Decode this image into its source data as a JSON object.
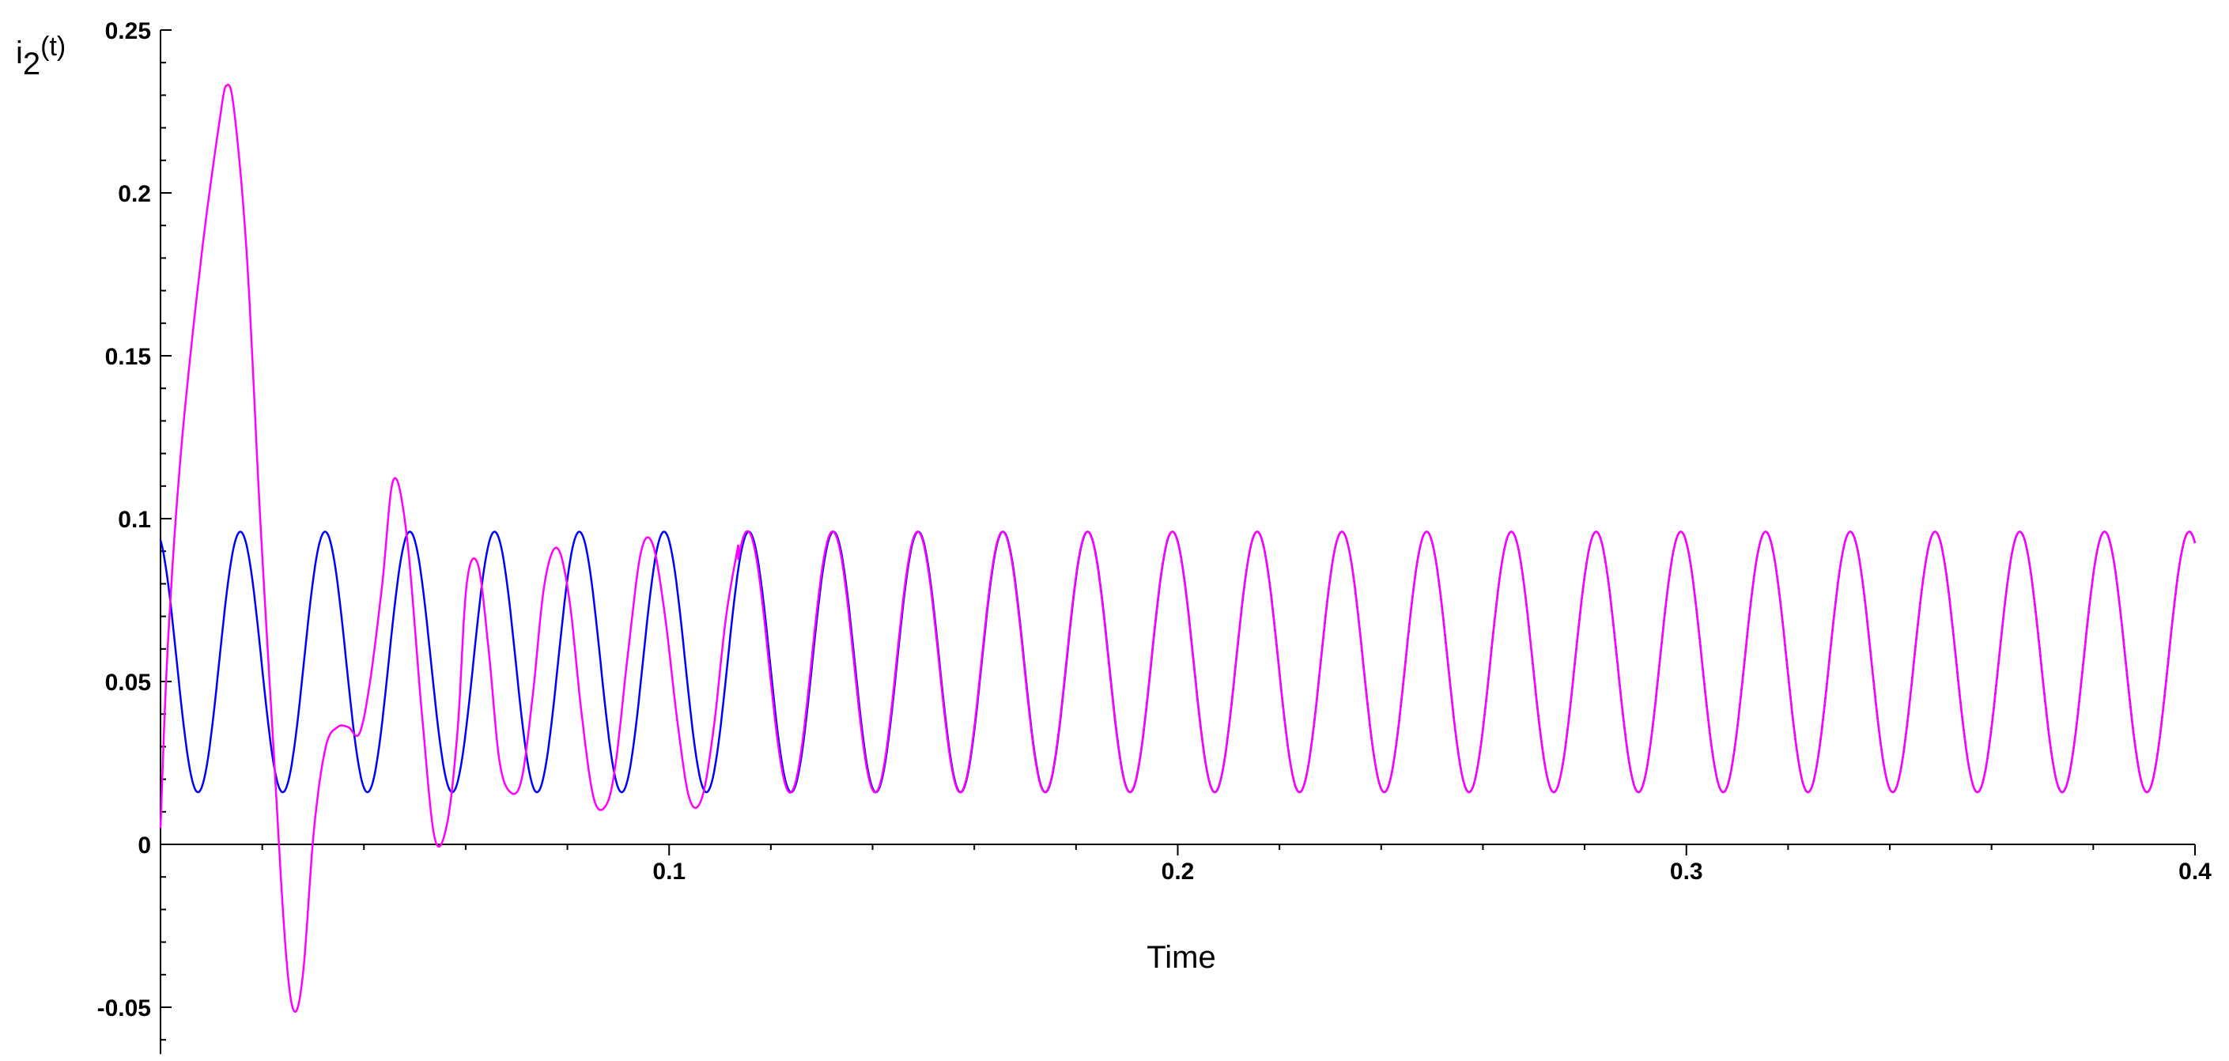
{
  "chart_data": {
    "type": "line",
    "title": "",
    "xlabel": "Time",
    "ylabel": {
      "base": "i",
      "sub": "2",
      "suffix": "(t)"
    },
    "xlim": [
      0,
      0.4
    ],
    "ylim": [
      -0.06,
      0.25
    ],
    "x_ticks": [
      {
        "value": 0.1,
        "label": "0.1"
      },
      {
        "value": 0.2,
        "label": "0.2"
      },
      {
        "value": 0.3,
        "label": "0.3"
      },
      {
        "value": 0.4,
        "label": "0.4"
      }
    ],
    "y_ticks": [
      {
        "value": -0.05,
        "label": "-0.05"
      },
      {
        "value": 0,
        "label": "0"
      },
      {
        "value": 0.05,
        "label": "0.05"
      },
      {
        "value": 0.1,
        "label": "0.1"
      },
      {
        "value": 0.15,
        "label": "0.15"
      },
      {
        "value": 0.2,
        "label": "0.2"
      },
      {
        "value": 0.25,
        "label": "0.25"
      }
    ],
    "grid": false,
    "legend": "none",
    "series": [
      {
        "color": "#0000ff",
        "description_values": "steady-state sinusoid",
        "x": [
          0,
          0.0035,
          0.0074,
          0.0114,
          0.0157,
          0.0204,
          0.0244,
          0.0284,
          0.0324,
          0.0364,
          0.0404,
          0.0444,
          0.0484,
          0.0524,
          0.0564,
          0.0604,
          0.0644,
          0.0684
        ],
        "y": [
          0.086,
          0.04,
          0.016,
          0.04,
          0.096,
          0.04,
          0.016,
          0.056,
          0.096,
          0.056,
          0.016,
          0.056,
          0.096,
          0.056,
          0.016,
          0.056,
          0.096,
          0.056
        ]
      },
      {
        "color": "#ff00ff",
        "x": [
          0,
          0.0014,
          0.004,
          0.008,
          0.0116,
          0.013,
          0.0145,
          0.017,
          0.0196,
          0.0222,
          0.0245,
          0.0262,
          0.028,
          0.0302,
          0.0325,
          0.0348,
          0.0369,
          0.0391,
          0.0412,
          0.0436,
          0.0458,
          0.0484,
          0.0514,
          0.0539,
          0.0563,
          0.0584,
          0.0602,
          0.0624,
          0.0645,
          0.0666,
          0.0688,
          0.071,
          0.0732,
          0.0755,
          0.078,
          0.0804,
          0.0828,
          0.0852,
          0.0876,
          0.0895,
          0.092,
          0.0945,
          0.0968,
          0.0992,
          0.1016,
          0.104,
          0.1064,
          0.1087,
          0.1112,
          0.1136
        ],
        "y": [
          0.005,
          0.06,
          0.12,
          0.18,
          0.222,
          0.233,
          0.225,
          0.18,
          0.1,
          0.03,
          -0.03,
          -0.051,
          -0.04,
          0.005,
          0.03,
          0.036,
          0.036,
          0.034,
          0.05,
          0.08,
          0.112,
          0.095,
          0.04,
          0.002,
          0.006,
          0.035,
          0.08,
          0.086,
          0.06,
          0.026,
          0.016,
          0.02,
          0.046,
          0.08,
          0.091,
          0.075,
          0.04,
          0.014,
          0.012,
          0.025,
          0.06,
          0.09,
          0.092,
          0.07,
          0.038,
          0.014,
          0.014,
          0.035,
          0.07,
          0.092
        ]
      }
    ],
    "steady_state": {
      "mean": 0.056,
      "amplitude": 0.04,
      "period": 0.01666,
      "note_shown": false
    }
  }
}
